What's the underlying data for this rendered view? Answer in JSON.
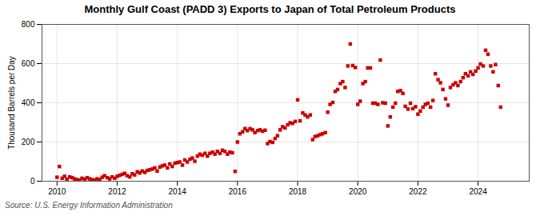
{
  "chart_data": {
    "type": "scatter",
    "title": "Monthly Gulf Coast (PADD 3) Exports to Japan of Total Petroleum Products",
    "ylabel": "Thousand Barrels per Day",
    "source": "Source: U.S. Energy Information Administration",
    "color": "#cc0000",
    "marker": "square",
    "grid": true,
    "xlim": [
      2009.5,
      2025.7
    ],
    "ylim": [
      0,
      800
    ],
    "yticks": [
      0,
      200,
      400,
      600,
      800
    ],
    "xticks": [
      2010,
      2012,
      2014,
      2016,
      2018,
      2020,
      2022,
      2024
    ],
    "x": [
      2010.0,
      2010.08,
      2010.17,
      2010.25,
      2010.33,
      2010.42,
      2010.5,
      2010.58,
      2010.67,
      2010.75,
      2010.83,
      2010.92,
      2011.0,
      2011.08,
      2011.17,
      2011.25,
      2011.33,
      2011.42,
      2011.5,
      2011.58,
      2011.67,
      2011.75,
      2011.83,
      2011.92,
      2012.0,
      2012.08,
      2012.17,
      2012.25,
      2012.33,
      2012.42,
      2012.5,
      2012.58,
      2012.67,
      2012.75,
      2012.83,
      2012.92,
      2013.0,
      2013.08,
      2013.17,
      2013.25,
      2013.33,
      2013.42,
      2013.5,
      2013.58,
      2013.67,
      2013.75,
      2013.83,
      2013.92,
      2014.0,
      2014.08,
      2014.17,
      2014.25,
      2014.33,
      2014.42,
      2014.5,
      2014.58,
      2014.67,
      2014.75,
      2014.83,
      2014.92,
      2015.0,
      2015.08,
      2015.17,
      2015.25,
      2015.33,
      2015.42,
      2015.5,
      2015.58,
      2015.67,
      2015.75,
      2015.83,
      2015.92,
      2016.0,
      2016.08,
      2016.17,
      2016.25,
      2016.33,
      2016.42,
      2016.5,
      2016.58,
      2016.67,
      2016.75,
      2016.83,
      2016.92,
      2017.0,
      2017.08,
      2017.17,
      2017.25,
      2017.33,
      2017.42,
      2017.5,
      2017.58,
      2017.67,
      2017.75,
      2017.83,
      2017.92,
      2018.0,
      2018.08,
      2018.17,
      2018.25,
      2018.33,
      2018.42,
      2018.5,
      2018.58,
      2018.67,
      2018.75,
      2018.83,
      2018.92,
      2019.0,
      2019.08,
      2019.17,
      2019.25,
      2019.33,
      2019.42,
      2019.5,
      2019.58,
      2019.67,
      2019.75,
      2019.83,
      2019.92,
      2020.0,
      2020.08,
      2020.17,
      2020.25,
      2020.33,
      2020.42,
      2020.5,
      2020.58,
      2020.67,
      2020.75,
      2020.83,
      2020.92,
      2021.0,
      2021.08,
      2021.17,
      2021.25,
      2021.33,
      2021.42,
      2021.5,
      2021.58,
      2021.67,
      2021.75,
      2021.83,
      2021.92,
      2022.0,
      2022.08,
      2022.17,
      2022.25,
      2022.33,
      2022.42,
      2022.5,
      2022.58,
      2022.67,
      2022.75,
      2022.83,
      2022.92,
      2023.0,
      2023.08,
      2023.17,
      2023.25,
      2023.33,
      2023.42,
      2023.5,
      2023.58,
      2023.67,
      2023.75,
      2023.83,
      2023.92,
      2024.0,
      2024.08,
      2024.17,
      2024.25,
      2024.33,
      2024.42,
      2024.5,
      2024.58,
      2024.67,
      2024.75
    ],
    "values": [
      20,
      75,
      15,
      25,
      10,
      22,
      18,
      12,
      8,
      5,
      15,
      10,
      18,
      12,
      8,
      5,
      12,
      8,
      20,
      28,
      18,
      12,
      22,
      15,
      25,
      30,
      35,
      40,
      28,
      22,
      38,
      32,
      48,
      42,
      52,
      45,
      55,
      58,
      62,
      68,
      52,
      72,
      78,
      82,
      68,
      88,
      75,
      92,
      95,
      98,
      82,
      108,
      98,
      112,
      118,
      102,
      128,
      138,
      132,
      142,
      128,
      142,
      148,
      138,
      152,
      142,
      158,
      152,
      138,
      148,
      145,
      50,
      200,
      242,
      252,
      268,
      258,
      268,
      262,
      248,
      258,
      262,
      255,
      260,
      192,
      202,
      198,
      218,
      232,
      262,
      278,
      272,
      288,
      298,
      295,
      305,
      415,
      308,
      348,
      338,
      328,
      338,
      212,
      228,
      232,
      238,
      242,
      248,
      352,
      392,
      402,
      458,
      468,
      498,
      508,
      478,
      588,
      700,
      590,
      580,
      392,
      408,
      498,
      508,
      578,
      578,
      398,
      398,
      392,
      618,
      400,
      398,
      282,
      328,
      378,
      398,
      458,
      462,
      448,
      382,
      368,
      398,
      370,
      380,
      342,
      358,
      378,
      392,
      398,
      378,
      412,
      548,
      518,
      502,
      468,
      420,
      388,
      478,
      492,
      502,
      488,
      508,
      528,
      548,
      538,
      558,
      545,
      562,
      578,
      598,
      588,
      668,
      648,
      588,
      558,
      595,
      488,
      378
    ]
  }
}
